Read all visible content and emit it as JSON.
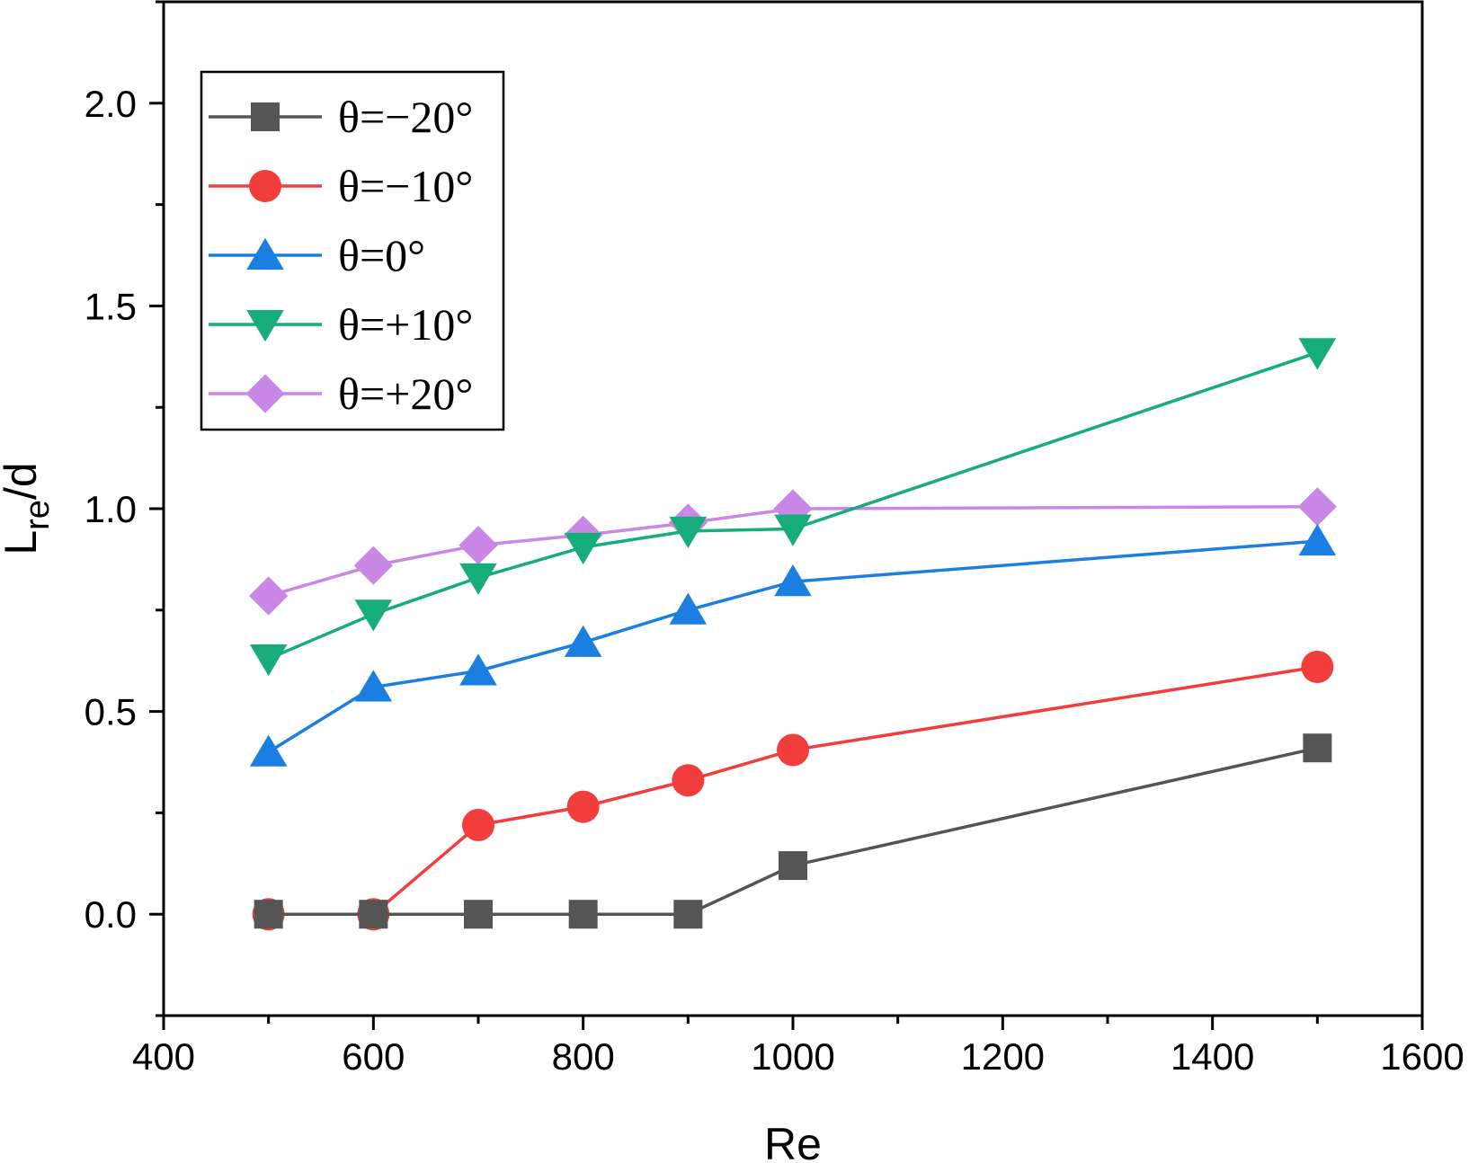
{
  "chart_data": {
    "type": "line",
    "xlabel": "Re",
    "ylabel_main": "L",
    "ylabel_sub": "re",
    "ylabel_tail": "/d",
    "xlim": [
      400,
      1600
    ],
    "ylim": [
      -0.25,
      2.25
    ],
    "x_ticks": [
      400,
      600,
      800,
      1000,
      1200,
      1400,
      1600
    ],
    "x_tick_labels": [
      "400",
      "600",
      "800",
      "1000",
      "1200",
      "1400",
      "1600"
    ],
    "y_ticks": [
      0.0,
      0.5,
      1.0,
      1.5,
      2.0
    ],
    "y_tick_labels": [
      "0.0",
      "0.5",
      "1.0",
      "1.5",
      "2.0"
    ],
    "legend_position": "top-left",
    "grid": false,
    "series": [
      {
        "name": "θ=−20°",
        "color": "#555555",
        "marker": "square",
        "x": [
          500,
          600,
          700,
          800,
          900,
          1000,
          1500
        ],
        "y": [
          0.0,
          0.0,
          0.0,
          0.0,
          0.0,
          0.12,
          0.41
        ]
      },
      {
        "name": "θ=−10°",
        "color": "#f23d3d",
        "marker": "circle",
        "x": [
          500,
          600,
          700,
          800,
          900,
          1000,
          1500
        ],
        "y": [
          0.0,
          0.0,
          0.22,
          0.265,
          0.33,
          0.405,
          0.61
        ]
      },
      {
        "name": "θ=0°",
        "color": "#1a7fe0",
        "marker": "triangle-up",
        "x": [
          500,
          600,
          700,
          800,
          900,
          1000,
          1500
        ],
        "y": [
          0.4,
          0.56,
          0.6,
          0.67,
          0.75,
          0.82,
          0.92
        ]
      },
      {
        "name": "θ=+10°",
        "color": "#16ad7a",
        "marker": "triangle-down",
        "x": [
          500,
          600,
          700,
          800,
          900,
          1000,
          1500
        ],
        "y": [
          0.63,
          0.74,
          0.83,
          0.905,
          0.945,
          0.95,
          1.385
        ]
      },
      {
        "name": "θ=+20°",
        "color": "#c988e6",
        "marker": "diamond",
        "x": [
          500,
          600,
          700,
          800,
          900,
          1000,
          1500
        ],
        "y": [
          0.785,
          0.86,
          0.91,
          0.935,
          0.965,
          1.0,
          1.005
        ]
      }
    ]
  }
}
